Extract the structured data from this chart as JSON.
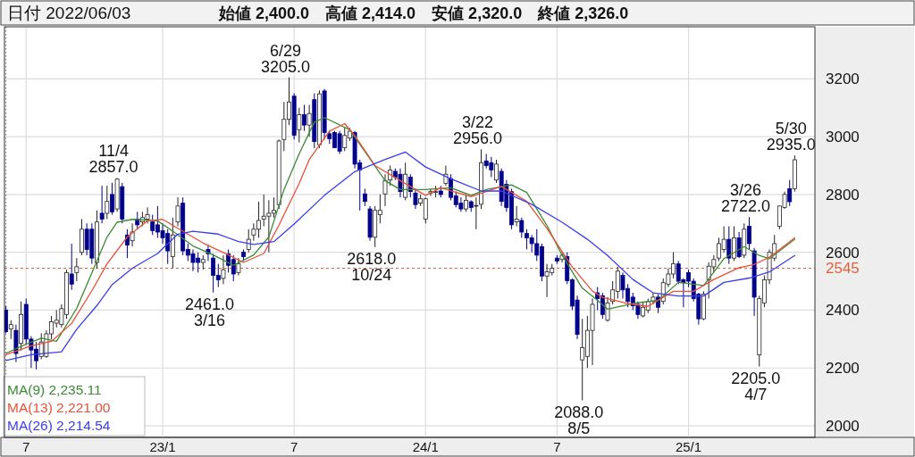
{
  "chart_data": {
    "type": "candlestick",
    "title": "日付 2022/06/03",
    "subtitle": "始値 2,400.0　高値 2,414.0　安値 2,320.0　終値 2,326.0",
    "x": [
      "2022-06-03",
      "2022-06-10",
      "2022-06-17",
      "2022-06-24",
      "2022-07-01",
      "2022-07-08",
      "2022-07-15",
      "2022-07-22",
      "2022-07-29",
      "2022-08-05",
      "2022-08-12",
      "2022-08-19",
      "2022-08-26",
      "2022-09-02",
      "2022-09-09",
      "2022-09-16",
      "2022-09-23",
      "2022-09-30",
      "2022-10-07",
      "2022-10-14",
      "2022-10-21",
      "2022-10-28",
      "2022-11-04",
      "2022-11-11",
      "2022-11-18",
      "2022-11-25",
      "2022-12-02",
      "2022-12-09",
      "2022-12-16",
      "2022-12-23",
      "2022-12-30",
      "2023-01-06",
      "2023-01-13",
      "2023-01-20",
      "2023-01-27",
      "2023-02-03",
      "2023-02-10",
      "2023-02-17",
      "2023-02-24",
      "2023-03-03",
      "2023-03-10",
      "2023-03-17",
      "2023-03-24",
      "2023-03-31",
      "2023-04-07",
      "2023-04-14",
      "2023-04-21",
      "2023-04-28",
      "2023-05-05",
      "2023-05-12",
      "2023-05-19",
      "2023-05-26",
      "2023-06-02",
      "2023-06-09",
      "2023-06-16",
      "2023-06-23",
      "2023-06-30",
      "2023-07-07",
      "2023-07-14",
      "2023-07-21",
      "2023-07-28",
      "2023-08-04",
      "2023-08-11",
      "2023-08-18",
      "2023-08-25",
      "2023-09-01",
      "2023-09-08",
      "2023-09-15",
      "2023-09-22",
      "2023-09-29",
      "2023-10-06",
      "2023-10-13",
      "2023-10-20",
      "2023-10-27",
      "2023-11-03",
      "2023-11-10",
      "2023-11-17",
      "2023-11-24",
      "2023-12-01",
      "2023-12-08",
      "2023-12-15",
      "2023-12-22",
      "2023-12-29",
      "2024-01-05",
      "2024-01-12",
      "2024-01-19",
      "2024-01-26",
      "2024-02-02",
      "2024-02-09",
      "2024-02-16",
      "2024-02-23",
      "2024-03-01",
      "2024-03-08",
      "2024-03-15",
      "2024-03-22",
      "2024-03-29",
      "2024-04-05",
      "2024-04-12",
      "2024-04-19",
      "2024-04-26",
      "2024-05-03",
      "2024-05-10",
      "2024-05-17",
      "2024-05-24",
      "2024-05-31",
      "2024-06-07",
      "2024-06-14",
      "2024-06-21",
      "2024-06-28",
      "2024-07-05",
      "2024-07-12",
      "2024-07-19",
      "2024-07-26",
      "2024-08-02",
      "2024-08-09",
      "2024-08-16",
      "2024-08-23",
      "2024-08-30",
      "2024-09-06",
      "2024-09-13",
      "2024-09-20",
      "2024-09-27",
      "2024-10-04",
      "2024-10-11",
      "2024-10-18",
      "2024-10-25",
      "2024-11-01",
      "2024-11-08",
      "2024-11-15",
      "2024-11-22",
      "2024-11-29",
      "2024-12-06",
      "2024-12-13",
      "2024-12-20",
      "2024-12-27",
      "2025-01-03",
      "2025-01-10",
      "2025-01-17",
      "2025-01-24",
      "2025-01-31",
      "2025-02-07",
      "2025-02-14",
      "2025-02-21",
      "2025-02-28",
      "2025-03-07",
      "2025-03-14",
      "2025-03-21",
      "2025-03-28",
      "2025-04-04",
      "2025-04-11",
      "2025-04-18",
      "2025-04-25",
      "2025-05-02",
      "2025-05-09",
      "2025-05-16",
      "2025-05-23",
      "2025-05-30"
    ],
    "ohlc": [
      [
        2400,
        2414,
        2320,
        2326
      ],
      [
        2335,
        2365,
        2300,
        2350
      ],
      [
        2330,
        2350,
        2220,
        2250
      ],
      [
        2285,
        2430,
        2260,
        2385
      ],
      [
        2420,
        2440,
        2280,
        2300
      ],
      [
        2300,
        2310,
        2200,
        2262
      ],
      [
        2265,
        2290,
        2195,
        2225
      ],
      [
        2240,
        2320,
        2230,
        2290
      ],
      [
        2240,
        2330,
        2235,
        2318
      ],
      [
        2318,
        2380,
        2300,
        2360
      ],
      [
        2355,
        2400,
        2340,
        2365
      ],
      [
        2350,
        2420,
        2340,
        2405
      ],
      [
        2385,
        2540,
        2370,
        2530
      ],
      [
        2525,
        2630,
        2470,
        2490
      ],
      [
        2530,
        2580,
        2500,
        2550
      ],
      [
        2600,
        2715,
        2590,
        2680
      ],
      [
        2680,
        2700,
        2590,
        2610
      ],
      [
        2680,
        2700,
        2560,
        2580
      ],
      [
        2565,
        2745,
        2545,
        2705
      ],
      [
        2735,
        2830,
        2700,
        2715
      ],
      [
        2735,
        2830,
        2715,
        2776
      ],
      [
        2800,
        2840,
        2730,
        2740
      ],
      [
        2750,
        2857,
        2740,
        2853
      ],
      [
        2827,
        2840,
        2700,
        2715
      ],
      [
        2660,
        2680,
        2580,
        2625
      ],
      [
        2640,
        2700,
        2620,
        2670
      ],
      [
        2715,
        2740,
        2680,
        2695
      ],
      [
        2705,
        2740,
        2690,
        2720
      ],
      [
        2715,
        2755,
        2700,
        2730
      ],
      [
        2705,
        2730,
        2660,
        2675
      ],
      [
        2695,
        2760,
        2650,
        2670
      ],
      [
        2675,
        2700,
        2630,
        2650
      ],
      [
        2665,
        2680,
        2560,
        2605
      ],
      [
        2585,
        2720,
        2545,
        2660
      ],
      [
        2705,
        2790,
        2690,
        2760
      ],
      [
        2770,
        2790,
        2590,
        2605
      ],
      [
        2610,
        2630,
        2570,
        2590
      ],
      [
        2595,
        2610,
        2535,
        2565
      ],
      [
        2580,
        2600,
        2530,
        2565
      ],
      [
        2565,
        2590,
        2540,
        2575
      ],
      [
        2610,
        2625,
        2570,
        2595
      ],
      [
        2580,
        2595,
        2461,
        2520
      ],
      [
        2520,
        2560,
        2480,
        2505
      ],
      [
        2510,
        2590,
        2490,
        2540
      ],
      [
        2595,
        2610,
        2530,
        2555
      ],
      [
        2575,
        2590,
        2500,
        2525
      ],
      [
        2530,
        2580,
        2520,
        2560
      ],
      [
        2600,
        2610,
        2570,
        2585
      ],
      [
        2610,
        2680,
        2600,
        2645
      ],
      [
        2660,
        2700,
        2640,
        2680
      ],
      [
        2680,
        2775,
        2650,
        2710
      ],
      [
        2715,
        2800,
        2690,
        2725
      ],
      [
        2725,
        2780,
        2600,
        2735
      ],
      [
        2735,
        2790,
        2720,
        2745
      ],
      [
        2765,
        2990,
        2750,
        2985
      ],
      [
        2990,
        3120,
        2950,
        3060
      ],
      [
        3060,
        3205,
        3040,
        3120
      ],
      [
        3140,
        3150,
        2990,
        3005
      ],
      [
        3024,
        3100,
        2980,
        3076
      ],
      [
        3076,
        3110,
        3020,
        3040
      ],
      [
        3040,
        3110,
        3000,
        3080
      ],
      [
        3128,
        3150,
        2960,
        2983
      ],
      [
        2972,
        3160,
        2960,
        3148
      ],
      [
        3158,
        3165,
        2990,
        3014
      ],
      [
        3010,
        3020,
        2975,
        2993
      ],
      [
        3014,
        3020,
        2960,
        2962
      ],
      [
        3010,
        3020,
        2940,
        2950
      ],
      [
        2962,
        3030,
        2950,
        3004
      ],
      [
        2995,
        3030,
        2985,
        3019
      ],
      [
        3014,
        3020,
        2890,
        2905
      ],
      [
        2910,
        2920,
        2745,
        2885
      ],
      [
        2802,
        2820,
        2760,
        2776
      ],
      [
        2750,
        2760,
        2640,
        2652
      ],
      [
        2652,
        2760,
        2618,
        2745
      ],
      [
        2730,
        2800,
        2700,
        2745
      ],
      [
        2802,
        2870,
        2760,
        2848
      ],
      [
        2850,
        2900,
        2830,
        2885
      ],
      [
        2880,
        2890,
        2850,
        2860
      ],
      [
        2870,
        2890,
        2790,
        2810
      ],
      [
        2790,
        2910,
        2780,
        2870
      ],
      [
        2860,
        2870,
        2790,
        2810
      ],
      [
        2805,
        2820,
        2750,
        2765
      ],
      [
        2770,
        2800,
        2760,
        2785
      ],
      [
        2715,
        2790,
        2700,
        2785
      ],
      [
        2805,
        2820,
        2795,
        2810
      ],
      [
        2808,
        2830,
        2790,
        2810
      ],
      [
        2812,
        2830,
        2790,
        2800
      ],
      [
        2838,
        2900,
        2830,
        2870
      ],
      [
        2855,
        2870,
        2780,
        2790
      ],
      [
        2795,
        2810,
        2755,
        2765
      ],
      [
        2770,
        2790,
        2740,
        2750
      ],
      [
        2750,
        2800,
        2740,
        2780
      ],
      [
        2775,
        2780,
        2740,
        2755
      ],
      [
        2760,
        2790,
        2680,
        2762
      ],
      [
        2766,
        2956,
        2750,
        2910
      ],
      [
        2916,
        2940,
        2890,
        2900
      ],
      [
        2910,
        2930,
        2860,
        2885
      ],
      [
        2850,
        2920,
        2840,
        2905
      ],
      [
        2880,
        2890,
        2760,
        2776
      ],
      [
        2835,
        2850,
        2740,
        2755
      ],
      [
        2810,
        2820,
        2680,
        2695
      ],
      [
        2705,
        2760,
        2690,
        2715
      ],
      [
        2710,
        2720,
        2650,
        2670
      ],
      [
        2665,
        2680,
        2610,
        2650
      ],
      [
        2650,
        2660,
        2600,
        2630
      ],
      [
        2630,
        2680,
        2570,
        2590
      ],
      [
        2620,
        2630,
        2500,
        2518
      ],
      [
        2518,
        2560,
        2445,
        2533
      ],
      [
        2530,
        2560,
        2520,
        2545
      ],
      [
        2580,
        2590,
        2560,
        2570
      ],
      [
        2575,
        2600,
        2565,
        2590
      ],
      [
        2585,
        2600,
        2490,
        2502
      ],
      [
        2505,
        2510,
        2400,
        2414
      ],
      [
        2435,
        2450,
        2300,
        2316
      ],
      [
        2228,
        2370,
        2088,
        2270
      ],
      [
        2240,
        2380,
        2200,
        2330
      ],
      [
        2330,
        2440,
        2210,
        2420
      ],
      [
        2460,
        2480,
        2400,
        2440
      ],
      [
        2450,
        2460,
        2370,
        2385
      ],
      [
        2365,
        2445,
        2360,
        2425
      ],
      [
        2430,
        2500,
        2420,
        2470
      ],
      [
        2465,
        2550,
        2440,
        2535
      ],
      [
        2520,
        2530,
        2440,
        2470
      ],
      [
        2475,
        2490,
        2410,
        2430
      ],
      [
        2445,
        2460,
        2400,
        2415
      ],
      [
        2420,
        2430,
        2370,
        2385
      ],
      [
        2380,
        2430,
        2375,
        2410
      ],
      [
        2400,
        2440,
        2390,
        2430
      ],
      [
        2430,
        2460,
        2420,
        2445
      ],
      [
        2445,
        2455,
        2390,
        2410
      ],
      [
        2430,
        2510,
        2420,
        2495
      ],
      [
        2490,
        2545,
        2480,
        2525
      ],
      [
        2525,
        2600,
        2510,
        2560
      ],
      [
        2560,
        2570,
        2490,
        2500
      ],
      [
        2505,
        2510,
        2410,
        2495
      ],
      [
        2530,
        2540,
        2480,
        2500
      ],
      [
        2500,
        2510,
        2430,
        2440
      ],
      [
        2455,
        2460,
        2350,
        2370
      ],
      [
        2370,
        2465,
        2365,
        2455
      ],
      [
        2505,
        2565,
        2440,
        2552
      ],
      [
        2550,
        2590,
        2530,
        2575
      ],
      [
        2580,
        2650,
        2570,
        2630
      ],
      [
        2610,
        2690,
        2600,
        2645
      ],
      [
        2645,
        2690,
        2560,
        2580
      ],
      [
        2580,
        2690,
        2570,
        2650
      ],
      [
        2650,
        2670,
        2580,
        2585
      ],
      [
        2590,
        2700,
        2580,
        2680
      ],
      [
        2690,
        2722,
        2610,
        2630
      ],
      [
        2605,
        2615,
        2380,
        2445
      ],
      [
        2245,
        2450,
        2205,
        2440
      ],
      [
        2425,
        2520,
        2410,
        2505
      ],
      [
        2505,
        2610,
        2490,
        2600
      ],
      [
        2580,
        2660,
        2570,
        2630
      ],
      [
        2690,
        2760,
        2680,
        2760
      ],
      [
        2755,
        2810,
        2750,
        2800
      ],
      [
        2820,
        2850,
        2760,
        2775
      ],
      [
        2820,
        2935,
        2810,
        2920
      ]
    ],
    "series": [
      {
        "type": "line",
        "name": "MA(9)  2,235.11",
        "color": "#3c8a34",
        "x": [
          "2022-06-03",
          "2022-07-01",
          "2022-07-22",
          "2022-08-12",
          "2022-09-09",
          "2022-09-30",
          "2022-10-21",
          "2022-11-04",
          "2022-11-25",
          "2022-12-30",
          "2023-01-20",
          "2023-02-17",
          "2023-03-17",
          "2023-04-14",
          "2023-05-12",
          "2023-06-02",
          "2023-06-23",
          "2023-07-14",
          "2023-08-04",
          "2023-08-18",
          "2023-09-22",
          "2023-11-10",
          "2023-12-01",
          "2024-01-05",
          "2024-02-09",
          "2024-03-08",
          "2024-03-29",
          "2024-05-03",
          "2024-05-24",
          "2024-06-21",
          "2024-07-12",
          "2024-08-09",
          "2024-08-30",
          "2024-09-13",
          "2024-10-18",
          "2024-11-22",
          "2024-12-20",
          "2025-01-24",
          "2025-02-21",
          "2025-03-21",
          "2025-04-11",
          "2025-04-25",
          "2025-05-30"
        ],
        "values": [
          2251,
          2282,
          2303,
          2292,
          2406,
          2529,
          2653,
          2704,
          2714,
          2709,
          2673,
          2622,
          2591,
          2555,
          2591,
          2653,
          2817,
          2941,
          3050,
          3066,
          3024,
          2848,
          2817,
          2817,
          2823,
          2797,
          2817,
          2833,
          2807,
          2693,
          2590,
          2476,
          2434,
          2403,
          2423,
          2434,
          2496,
          2485,
          2578,
          2620,
          2589,
          2578,
          2645
        ]
      },
      {
        "type": "line",
        "name": "MA(13)  2,221.00",
        "color": "#e8503a",
        "x": [
          "2022-06-03",
          "2022-07-08",
          "2022-08-05",
          "2022-09-02",
          "2022-09-30",
          "2022-10-21",
          "2022-11-18",
          "2022-12-16",
          "2023-01-06",
          "2023-01-27",
          "2023-03-03",
          "2023-04-07",
          "2023-04-28",
          "2023-05-26",
          "2023-06-16",
          "2023-07-14",
          "2023-07-28",
          "2023-08-25",
          "2023-09-15",
          "2023-09-29",
          "2023-10-27",
          "2023-12-01",
          "2024-01-05",
          "2024-01-26",
          "2024-03-08",
          "2024-04-19",
          "2024-05-24",
          "2024-06-21",
          "2024-07-26",
          "2024-08-23",
          "2024-09-06",
          "2024-10-11",
          "2024-11-08",
          "2024-12-13",
          "2025-01-10",
          "2025-02-07",
          "2025-03-14",
          "2025-04-04",
          "2025-04-25",
          "2025-05-30"
        ],
        "values": [
          2246,
          2277,
          2292,
          2354,
          2467,
          2560,
          2653,
          2709,
          2714,
          2683,
          2632,
          2591,
          2565,
          2596,
          2694,
          2838,
          2921,
          3019,
          3045,
          3004,
          2900,
          2848,
          2797,
          2823,
          2792,
          2828,
          2776,
          2683,
          2549,
          2466,
          2444,
          2423,
          2413,
          2465,
          2465,
          2506,
          2547,
          2558,
          2583,
          2650
        ]
      },
      {
        "type": "line",
        "name": "MA(26)  2,214.54",
        "color": "#3c3cf0",
        "x": [
          "2022-06-03",
          "2022-07-08",
          "2022-08-19",
          "2022-09-09",
          "2022-10-07",
          "2022-10-28",
          "2022-11-25",
          "2022-12-30",
          "2023-01-27",
          "2023-02-17",
          "2023-03-24",
          "2023-04-21",
          "2023-05-12",
          "2023-06-09",
          "2023-07-07",
          "2023-08-18",
          "2023-09-29",
          "2023-11-10",
          "2023-12-08",
          "2024-01-05",
          "2024-02-09",
          "2024-03-22",
          "2024-04-19",
          "2024-05-31",
          "2024-07-12",
          "2024-08-16",
          "2024-09-13",
          "2024-10-18",
          "2024-11-15",
          "2024-12-20",
          "2025-01-24",
          "2025-02-21",
          "2025-03-28",
          "2025-04-25",
          "2025-05-30"
        ],
        "values": [
          2226,
          2246,
          2256,
          2334,
          2416,
          2488,
          2545,
          2596,
          2663,
          2673,
          2663,
          2637,
          2627,
          2637,
          2698,
          2797,
          2879,
          2921,
          2947,
          2895,
          2854,
          2812,
          2812,
          2766,
          2704,
          2645,
          2589,
          2506,
          2460,
          2449,
          2449,
          2496,
          2511,
          2532,
          2589
        ]
      }
    ],
    "annotations": [
      {
        "text": "11/4\n2857.0",
        "x": "2022-11-04",
        "y": 2857
      },
      {
        "text": "6/29\n3205.0",
        "x": "2023-06-30",
        "y": 3205
      },
      {
        "text": "2461.0\n3/16",
        "x": "2023-03-17",
        "y": 2461
      },
      {
        "text": "2618.0\n10/24",
        "x": "2023-10-27",
        "y": 2618
      },
      {
        "text": "3/22\n2956.0",
        "x": "2024-03-22",
        "y": 2956
      },
      {
        "text": "2088.0\n8/5",
        "x": "2024-08-09",
        "y": 2088
      },
      {
        "text": "3/26\n2722.0",
        "x": "2025-03-28",
        "y": 2722
      },
      {
        "text": "2205.0\n4/7",
        "x": "2025-04-11",
        "y": 2205
      },
      {
        "text": "5/30\n2935.0",
        "x": "2025-05-30",
        "y": 2935
      }
    ],
    "ref_lines": [
      {
        "axis": "y",
        "value": 2545,
        "label": "2545",
        "color": "#e0603c",
        "line_style": "dashed"
      },
      {
        "axis": "x",
        "value": "2022-06-03",
        "line_style": "dotted"
      }
    ],
    "xlim": [
      "2022-06-01",
      "2025-06-27"
    ],
    "xticks": [
      {
        "value": "2022-07-01",
        "label": "7"
      },
      {
        "value": "2023-01-06",
        "label": "23/1"
      },
      {
        "value": "2023-07-07",
        "label": "7"
      },
      {
        "value": "2024-01-05",
        "label": "24/1"
      },
      {
        "value": "2024-07-05",
        "label": "7"
      },
      {
        "value": "2025-01-03",
        "label": "25/1"
      }
    ],
    "ylim": [
      1960,
      3380
    ],
    "yticks": [
      2000,
      2200,
      2400,
      2600,
      2800,
      3000,
      3200
    ],
    "grid": true,
    "legend": "bottom left"
  }
}
